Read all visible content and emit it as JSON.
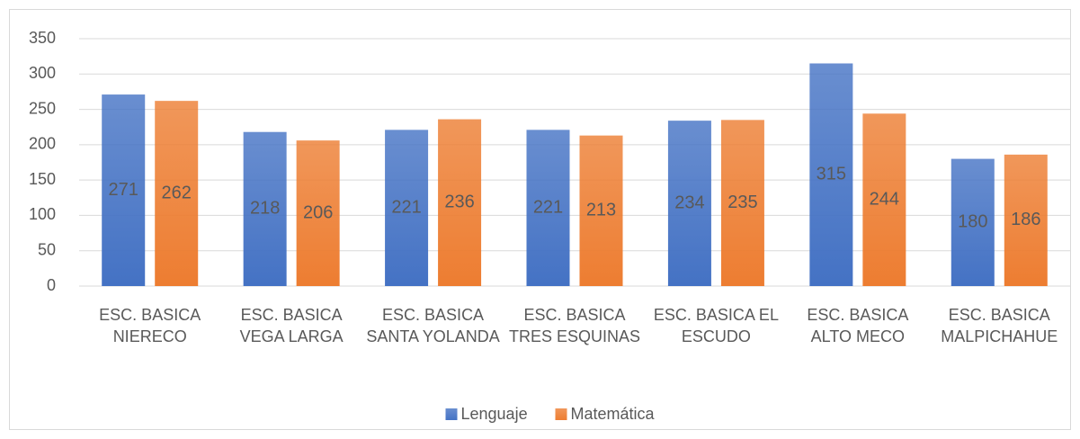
{
  "chart_data": {
    "type": "bar",
    "categories": [
      "ESC. BASICA NIERECO",
      "ESC. BASICA VEGA LARGA",
      "ESC. BASICA SANTA YOLANDA",
      "ESC. BASICA TRES ESQUINAS",
      "ESC. BASICA EL ESCUDO",
      "ESC. BASICA ALTO MECO",
      "ESC. BASICA MALPICHAHUE"
    ],
    "series": [
      {
        "name": "Lenguaje",
        "color": "#4472c4",
        "values": [
          271,
          218,
          221,
          221,
          234,
          315,
          180
        ]
      },
      {
        "name": "Matemática",
        "color": "#ed7d31",
        "values": [
          262,
          206,
          236,
          213,
          235,
          244,
          186
        ]
      }
    ],
    "ylim": [
      0,
      350
    ],
    "yticks": [
      0,
      50,
      100,
      150,
      200,
      250,
      300,
      350
    ],
    "grid": true,
    "legend": "bottom"
  }
}
